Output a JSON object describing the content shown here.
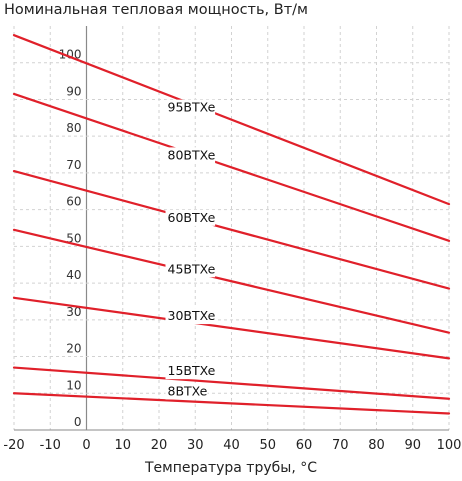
{
  "chart_data": {
    "type": "line",
    "title": "Номинальная тепловая мощность, Вт/м",
    "xlabel": "Температура трубы, °C",
    "ylabel": "",
    "xlim": [
      -20,
      100
    ],
    "ylim": [
      0,
      110
    ],
    "x_ticks": [
      "-20",
      "-10",
      "0",
      "10",
      "20",
      "30",
      "40",
      "50",
      "60",
      "70",
      "80",
      "90",
      "100"
    ],
    "y_ticks": [
      "0",
      "10",
      "20",
      "30",
      "40",
      "50",
      "60",
      "70",
      "80",
      "90",
      "100"
    ],
    "grid": true,
    "line_color": "#e0202a",
    "series": [
      {
        "name": "95BTXe",
        "x": [
          -20,
          100
        ],
        "y": [
          107.5,
          61.5
        ]
      },
      {
        "name": "80BTXe",
        "x": [
          -20,
          100
        ],
        "y": [
          91.5,
          51.5
        ]
      },
      {
        "name": "60BTXe",
        "x": [
          -20,
          100
        ],
        "y": [
          70.5,
          38.5
        ]
      },
      {
        "name": "45BTXe",
        "x": [
          -20,
          100
        ],
        "y": [
          54.5,
          26.5
        ]
      },
      {
        "name": "30BTXe",
        "x": [
          -20,
          100
        ],
        "y": [
          36,
          19.5
        ]
      },
      {
        "name": "15BTXe",
        "x": [
          -20,
          100
        ],
        "y": [
          17,
          8.5
        ]
      },
      {
        "name": "8BTXe",
        "x": [
          -20,
          100
        ],
        "y": [
          10,
          4.5
        ]
      }
    ]
  }
}
